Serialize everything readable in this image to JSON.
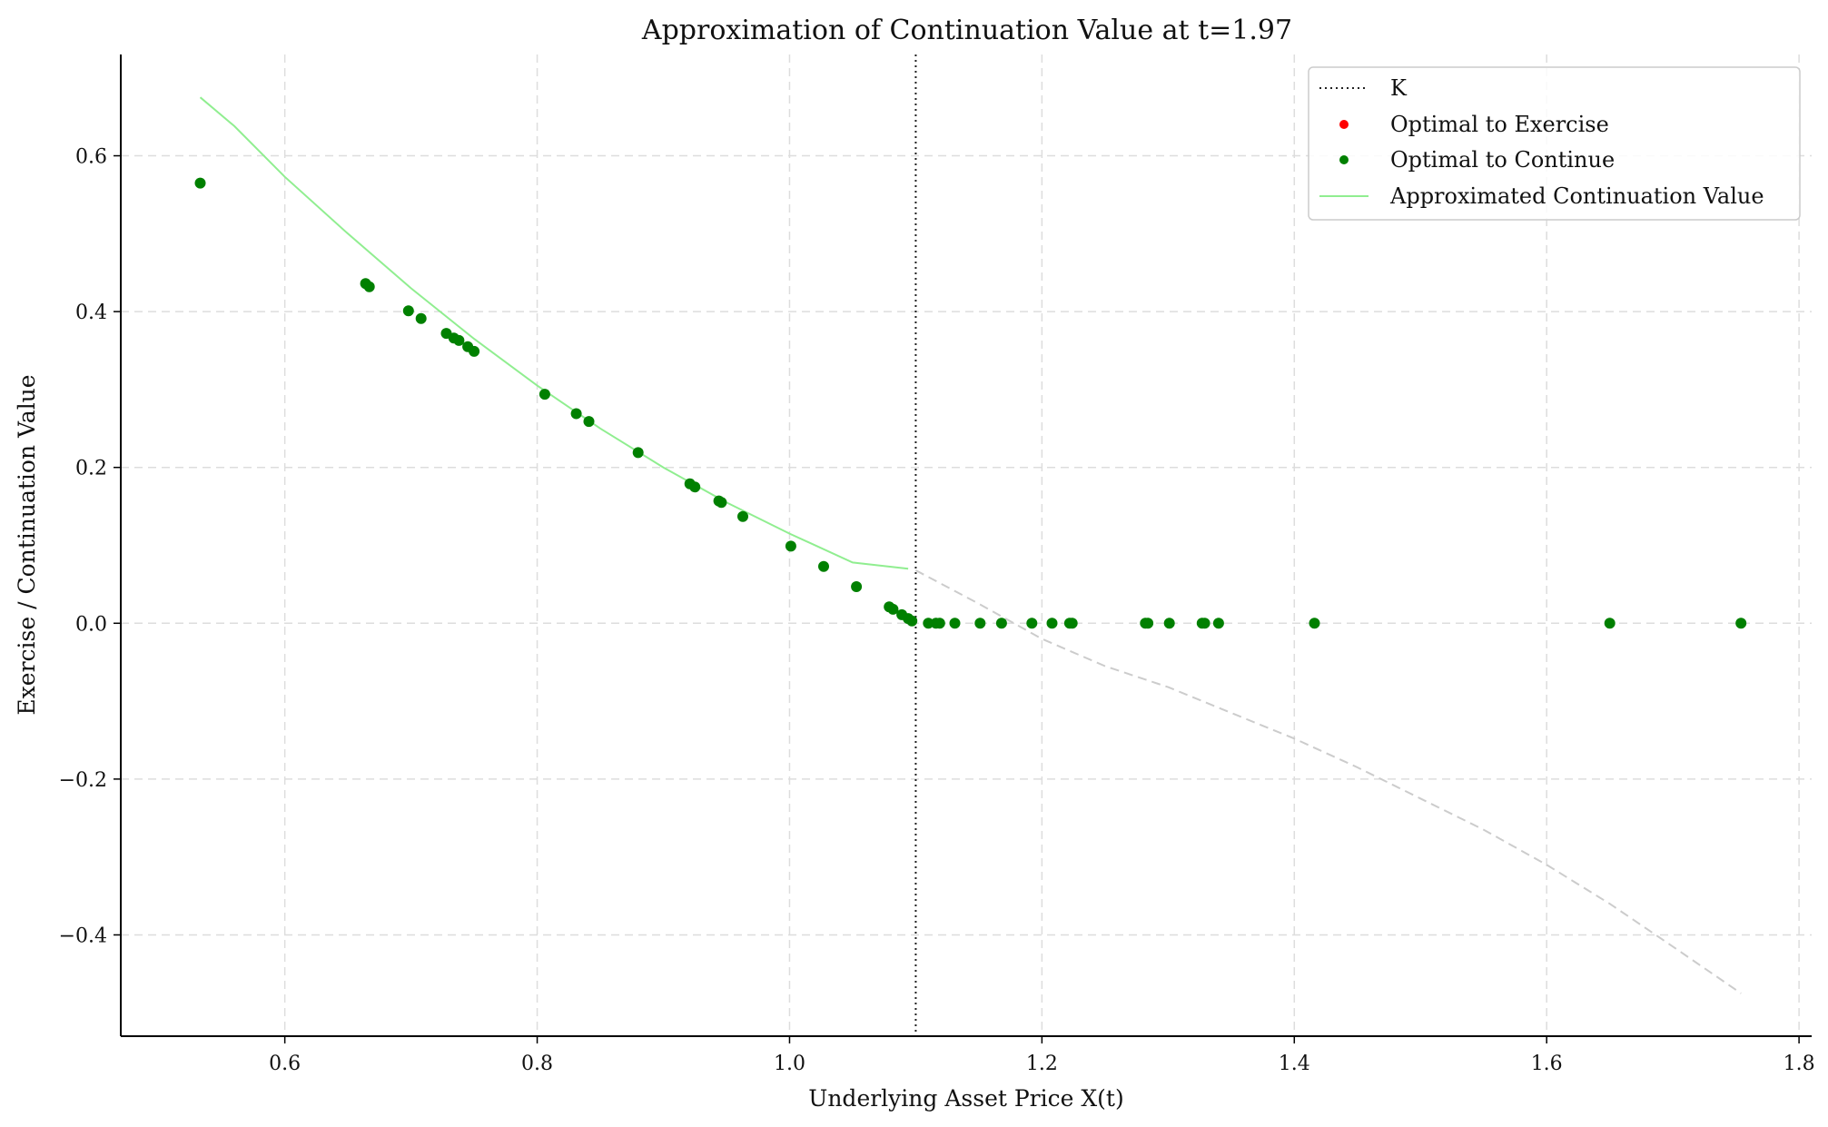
{
  "chart_data": {
    "type": "scatter",
    "title": "Approximation of Continuation Value at t=1.97",
    "xlabel": "Underlying Asset Price X(t)",
    "ylabel": "Exercise / Continuation Value",
    "xlim": [
      0.47,
      1.81
    ],
    "ylim": [
      -0.53,
      0.73
    ],
    "x_ticks": [
      0.6,
      0.8,
      1.0,
      1.2,
      1.4,
      1.6,
      1.8
    ],
    "x_tick_labels": [
      "0.6",
      "0.8",
      "1.0",
      "1.2",
      "1.4",
      "1.6",
      "1.8"
    ],
    "y_ticks": [
      -0.4,
      -0.2,
      0.0,
      0.2,
      0.4,
      0.6
    ],
    "y_tick_labels": [
      "−0.4",
      "−0.2",
      "0.0",
      "0.2",
      "0.4",
      "0.6"
    ],
    "grid": true,
    "legend_position": "top-right",
    "legend": [
      {
        "label": "K",
        "style": "dotted-line",
        "color": "#222222"
      },
      {
        "label": "Optimal to Exercise",
        "style": "marker",
        "color": "#ff0000"
      },
      {
        "label": "Optimal to Continue",
        "style": "marker",
        "color": "#008000"
      },
      {
        "label": "Approximated Continuation Value",
        "style": "line",
        "color": "#90ee90"
      }
    ],
    "strike_K": 1.1,
    "series": [
      {
        "name": "Optimal to Continue",
        "color": "#008000",
        "points": [
          [
            0.533,
            0.565
          ],
          [
            0.664,
            0.436
          ],
          [
            0.667,
            0.432
          ],
          [
            0.698,
            0.401
          ],
          [
            0.708,
            0.391
          ],
          [
            0.728,
            0.372
          ],
          [
            0.734,
            0.366
          ],
          [
            0.738,
            0.363
          ],
          [
            0.745,
            0.355
          ],
          [
            0.75,
            0.349
          ],
          [
            0.806,
            0.294
          ],
          [
            0.831,
            0.269
          ],
          [
            0.841,
            0.259
          ],
          [
            0.88,
            0.219
          ],
          [
            0.921,
            0.179
          ],
          [
            0.925,
            0.175
          ],
          [
            0.944,
            0.157
          ],
          [
            0.946,
            0.155
          ],
          [
            0.963,
            0.137
          ],
          [
            1.001,
            0.099
          ],
          [
            1.027,
            0.073
          ],
          [
            1.053,
            0.047
          ],
          [
            1.079,
            0.021
          ],
          [
            1.082,
            0.018
          ],
          [
            1.089,
            0.011
          ],
          [
            1.094,
            0.006
          ],
          [
            1.097,
            0.003
          ],
          [
            1.11,
            0.0
          ],
          [
            1.116,
            0.0
          ],
          [
            1.119,
            0.0
          ],
          [
            1.131,
            0.0
          ],
          [
            1.151,
            0.0
          ],
          [
            1.168,
            0.0
          ],
          [
            1.192,
            0.0
          ],
          [
            1.208,
            0.0
          ],
          [
            1.222,
            0.0
          ],
          [
            1.224,
            0.0
          ],
          [
            1.282,
            0.0
          ],
          [
            1.284,
            0.0
          ],
          [
            1.301,
            0.0
          ],
          [
            1.327,
            0.0
          ],
          [
            1.329,
            0.0
          ],
          [
            1.34,
            0.0
          ],
          [
            1.416,
            0.0
          ],
          [
            1.65,
            0.0
          ],
          [
            1.754,
            0.0
          ]
        ]
      },
      {
        "name": "Optimal to Exercise",
        "color": "#ff0000",
        "points": []
      },
      {
        "name": "Approximated Continuation Value",
        "color": "#90ee90",
        "style": "solid",
        "points": [
          [
            0.533,
            0.675
          ],
          [
            0.56,
            0.638
          ],
          [
            0.6,
            0.573
          ],
          [
            0.65,
            0.5
          ],
          [
            0.7,
            0.43
          ],
          [
            0.75,
            0.365
          ],
          [
            0.8,
            0.305
          ],
          [
            0.85,
            0.25
          ],
          [
            0.9,
            0.2
          ],
          [
            0.95,
            0.155
          ],
          [
            1.0,
            0.115
          ],
          [
            1.05,
            0.078
          ],
          [
            1.094,
            0.07
          ]
        ]
      },
      {
        "color": "#cccccc",
        "style": "dashed",
        "points": [
          [
            1.1,
            0.068
          ],
          [
            1.15,
            0.025
          ],
          [
            1.2,
            -0.02
          ],
          [
            1.25,
            -0.055
          ],
          [
            1.3,
            -0.082
          ],
          [
            1.35,
            -0.115
          ],
          [
            1.4,
            -0.148
          ],
          [
            1.45,
            -0.185
          ],
          [
            1.5,
            -0.225
          ],
          [
            1.55,
            -0.265
          ],
          [
            1.6,
            -0.31
          ],
          [
            1.65,
            -0.36
          ],
          [
            1.7,
            -0.415
          ],
          [
            1.754,
            -0.475
          ]
        ]
      }
    ]
  }
}
